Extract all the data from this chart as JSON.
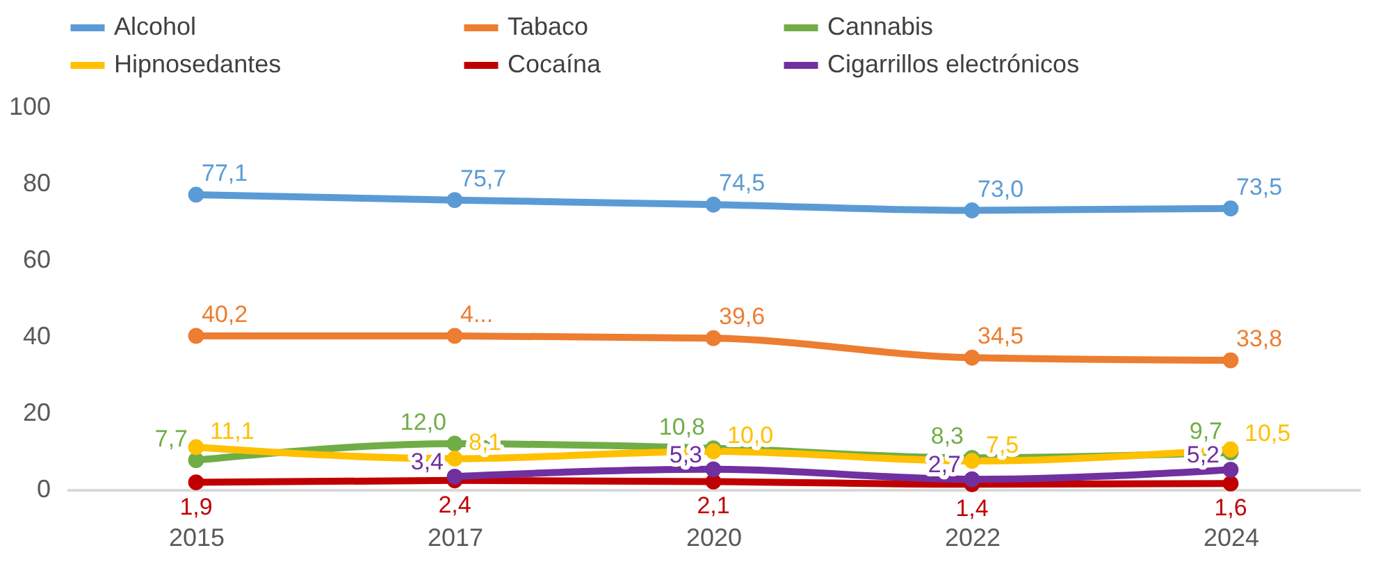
{
  "chart_data": {
    "type": "line",
    "categories": [
      "2015",
      "2017",
      "2020",
      "2022",
      "2024"
    ],
    "ylim": [
      0,
      100
    ],
    "yticks": [
      0,
      20,
      40,
      60,
      80,
      100
    ],
    "legend": "top",
    "marker": "circle",
    "series": [
      {
        "name": "Alcohol",
        "color": "#5b9bd5",
        "values": [
          77.1,
          75.7,
          74.5,
          73.0,
          73.5
        ],
        "value_labels": [
          "77,1",
          "75,7",
          "74,5",
          "73,0",
          "73,5"
        ]
      },
      {
        "name": "Tabaco",
        "color": "#ed7d31",
        "values": [
          40.2,
          40.2,
          39.6,
          34.5,
          33.8
        ],
        "value_labels": [
          "40,2",
          "4...",
          "39,6",
          "34,5",
          "33,8"
        ]
      },
      {
        "name": "Cannabis",
        "color": "#70ad47",
        "values": [
          7.7,
          12.0,
          10.8,
          8.3,
          9.7
        ],
        "value_labels": [
          "7,7",
          "12,0",
          "10,8",
          "8,3",
          "9,7"
        ]
      },
      {
        "name": "Hipnosedantes",
        "color": "#ffc000",
        "values": [
          11.1,
          8.1,
          10.0,
          7.5,
          10.5
        ],
        "value_labels": [
          "11,1",
          "8,1",
          "10,0",
          "7,5",
          "10,5"
        ]
      },
      {
        "name": "Cocaína",
        "color": "#c00000",
        "values": [
          1.9,
          2.4,
          2.1,
          1.4,
          1.6
        ],
        "value_labels": [
          "1,9",
          "2,4",
          "2,1",
          "1,4",
          "1,6"
        ]
      },
      {
        "name": "Cigarrillos electrónicos",
        "color": "#7030a0",
        "values": [
          null,
          3.4,
          5.3,
          2.7,
          5.2
        ],
        "value_labels": [
          null,
          "3,4",
          "5,3",
          "2,7",
          "5,2"
        ]
      }
    ]
  }
}
